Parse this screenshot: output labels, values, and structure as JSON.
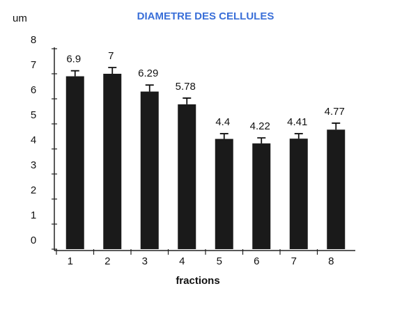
{
  "chart_data": {
    "type": "bar",
    "title": "DIAMETRE DES CELLULES",
    "y_label": "um",
    "x_label": "fractions",
    "categories": [
      "1",
      "2",
      "3",
      "4",
      "5",
      "6",
      "7",
      "8"
    ],
    "values": [
      6.9,
      7,
      6.29,
      5.78,
      4.4,
      4.22,
      4.41,
      4.77
    ],
    "errors": [
      0.22,
      0.25,
      0.26,
      0.25,
      0.21,
      0.22,
      0.2,
      0.26
    ],
    "color": "#1a1a1a",
    "ylim": [
      0,
      8
    ],
    "yticks": [
      0,
      1,
      2,
      3,
      4,
      5,
      6,
      7,
      8
    ],
    "grid": false
  }
}
